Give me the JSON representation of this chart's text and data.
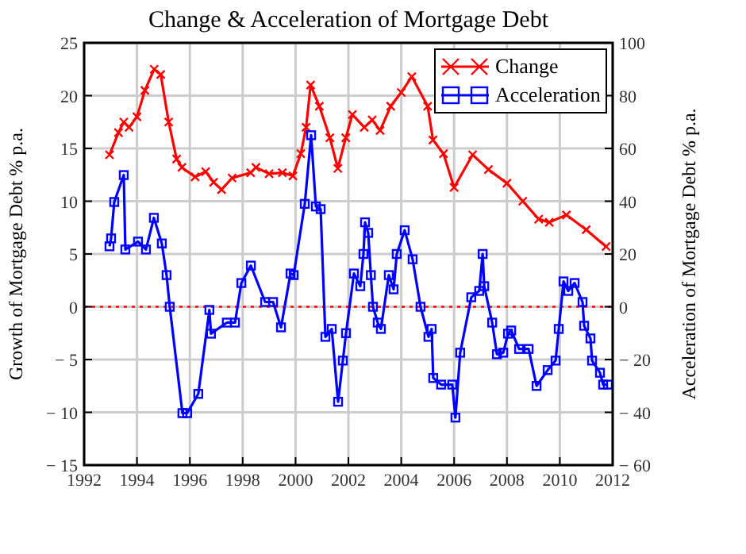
{
  "chart_data": {
    "type": "line",
    "title": "Change & Acceleration of Mortgage Debt",
    "ylabel": "Growth of Mortgage Debt % p.a.",
    "y2label": "Acceleration of Mortgage Debt % p.a.",
    "xlim": [
      1992,
      2012
    ],
    "xticks": [
      1992,
      1994,
      1996,
      1998,
      2000,
      2002,
      2004,
      2006,
      2008,
      2010,
      2012
    ],
    "ylim": [
      -15,
      25
    ],
    "yticks": [
      -15,
      -10,
      -5,
      0,
      5,
      10,
      15,
      20,
      25
    ],
    "y2lim": [
      -60,
      100
    ],
    "y2ticks": [
      -60,
      -40,
      -20,
      0,
      20,
      40,
      60,
      80,
      100
    ],
    "grid": true,
    "legend": "top right",
    "line_style": "solid",
    "ref_lines": [
      {
        "axis": "y",
        "value": 0,
        "color": "#ff0000",
        "line_style": "dotted"
      }
    ],
    "series": [
      {
        "name": "Change",
        "color": "#ff0000",
        "marker": "cross",
        "x": [
          1992.96,
          1993.3,
          1993.5,
          1993.7,
          1994.0,
          1994.3,
          1994.65,
          1994.9,
          1995.2,
          1995.5,
          1995.7,
          1996.2,
          1996.6,
          1996.9,
          1997.2,
          1997.6,
          1998.3,
          1998.5,
          1999.0,
          1999.5,
          1999.9,
          2000.2,
          2000.4,
          2000.57,
          2000.9,
          2001.3,
          2001.6,
          2001.9,
          2002.15,
          2002.6,
          2002.9,
          2003.2,
          2003.6,
          2004.0,
          2004.4,
          2005.0,
          2005.2,
          2005.6,
          2006.0,
          2006.7,
          2007.3,
          2008.0,
          2008.6,
          2009.2,
          2009.6,
          2010.25,
          2011.0,
          2011.75
        ],
        "values": [
          14.4,
          16.5,
          17.5,
          17,
          18,
          20.5,
          22.5,
          22,
          17.5,
          14,
          13.2,
          12.3,
          12.8,
          11.8,
          11.1,
          12.2,
          12.7,
          13.2,
          12.6,
          12.7,
          12.4,
          14.5,
          17,
          21,
          19,
          16,
          13.1,
          16,
          18.2,
          17,
          17.7,
          16.7,
          19,
          20.3,
          21.8,
          19,
          15.8,
          14.5,
          11.3,
          14.4,
          13,
          11.7,
          10,
          8.3,
          8,
          8.7,
          7.3,
          5.7
        ]
      },
      {
        "name": "Acceleration",
        "color": "#0000ff",
        "marker": "square",
        "axis": "y2",
        "x": [
          1992.96,
          1993.02,
          1993.14,
          1993.5,
          1993.56,
          1994.04,
          1994.34,
          1994.64,
          1994.94,
          1995.12,
          1995.24,
          1995.72,
          1995.9,
          1996.32,
          1996.74,
          1996.8,
          1997.4,
          1997.71,
          1997.95,
          1998.31,
          1998.85,
          1999.15,
          1999.45,
          1999.81,
          1999.93,
          2000.35,
          2000.59,
          2000.77,
          2000.95,
          2001.13,
          2001.37,
          2001.61,
          2001.79,
          2001.91,
          2002.21,
          2002.45,
          2002.57,
          2002.63,
          2002.75,
          2002.85,
          2002.93,
          2003.11,
          2003.23,
          2003.53,
          2003.71,
          2003.83,
          2004.13,
          2004.43,
          2004.73,
          2005.03,
          2005.15,
          2005.21,
          2005.51,
          2005.93,
          2006.05,
          2006.23,
          2006.65,
          2006.95,
          2007.08,
          2007.14,
          2007.44,
          2007.62,
          2007.86,
          2008.04,
          2008.16,
          2008.46,
          2008.82,
          2009.12,
          2009.54,
          2009.84,
          2009.96,
          2010.14,
          2010.32,
          2010.56,
          2010.86,
          2010.92,
          2011.16,
          2011.22,
          2011.52,
          2011.64,
          2011.82
        ],
        "values": [
          22.9,
          25.9,
          39.7,
          49.9,
          21.7,
          24.7,
          21.7,
          33.7,
          24,
          12,
          0,
          -40.3,
          -40.3,
          -33,
          -1.2,
          -10.2,
          -6,
          -6,
          9,
          15.6,
          1.8,
          1.8,
          -7.8,
          12.6,
          12,
          39,
          65,
          38,
          37,
          -11.4,
          -8.4,
          -36,
          -20.4,
          -10,
          12.6,
          7.8,
          20,
          32,
          28,
          12,
          0,
          -6,
          -8.4,
          12,
          6.6,
          20,
          29,
          18,
          0,
          -11.4,
          -8.4,
          -27,
          -29.5,
          -29.5,
          -42,
          -17.4,
          3.6,
          6,
          20,
          7.8,
          -6,
          -18,
          -17.4,
          -10.2,
          -9,
          -16,
          -16,
          -30,
          -24,
          -20.4,
          -8.4,
          9.6,
          6,
          9,
          1.8,
          -7.2,
          -12,
          -20.4,
          -25,
          -29.5,
          -29.5
        ]
      }
    ]
  }
}
